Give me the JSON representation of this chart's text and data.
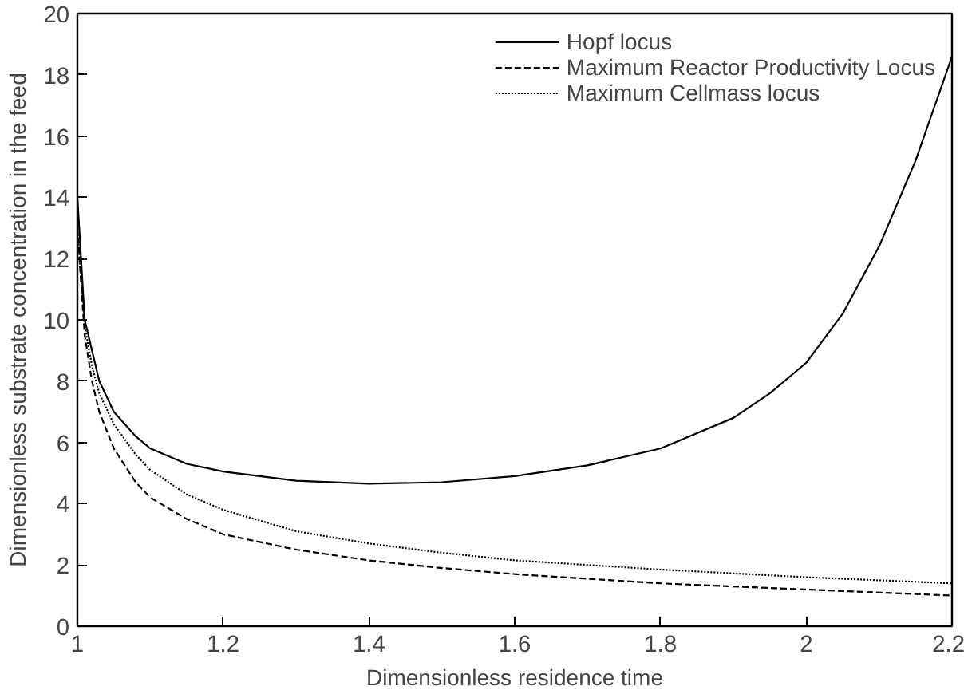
{
  "chart_data": {
    "type": "line",
    "xlabel": "Dimensionless residence time",
    "ylabel": "Dimensionless substrate concentration in the feed",
    "xlim": [
      1,
      2.2
    ],
    "ylim": [
      0,
      20
    ],
    "xticks": [
      1,
      1.2,
      1.4,
      1.6,
      1.8,
      2,
      2.2
    ],
    "yticks": [
      0,
      2,
      4,
      6,
      8,
      10,
      12,
      14,
      16,
      18,
      20
    ],
    "grid": false,
    "legend": "top right",
    "series": [
      {
        "name": "Hopf locus",
        "color": "#000000",
        "line_style": "solid",
        "x": [
          1.0,
          1.01,
          1.03,
          1.05,
          1.08,
          1.1,
          1.15,
          1.2,
          1.3,
          1.4,
          1.5,
          1.6,
          1.7,
          1.8,
          1.9,
          1.95,
          2.0,
          2.05,
          2.1,
          2.15,
          2.2
        ],
        "values": [
          14,
          10,
          8,
          7,
          6.2,
          5.8,
          5.3,
          5.05,
          4.75,
          4.65,
          4.7,
          4.9,
          5.25,
          5.8,
          6.8,
          7.6,
          8.6,
          10.2,
          12.4,
          15.2,
          18.6
        ]
      },
      {
        "name": "Maximum Reactor Productivity Locus",
        "color": "#000000",
        "line_style": "dashed",
        "x": [
          1.0,
          1.01,
          1.02,
          1.03,
          1.05,
          1.08,
          1.1,
          1.15,
          1.2,
          1.3,
          1.4,
          1.5,
          1.6,
          1.8,
          2.0,
          2.2
        ],
        "values": [
          13,
          9.5,
          8,
          7,
          5.8,
          4.7,
          4.2,
          3.5,
          3.0,
          2.5,
          2.15,
          1.9,
          1.7,
          1.4,
          1.2,
          1.0
        ]
      },
      {
        "name": "Maximum Cellmass locus",
        "color": "#000000",
        "line_style": "dotted",
        "x": [
          1.0,
          1.01,
          1.02,
          1.03,
          1.05,
          1.08,
          1.1,
          1.15,
          1.2,
          1.3,
          1.4,
          1.5,
          1.6,
          1.8,
          2.0,
          2.2
        ],
        "values": [
          13,
          9.8,
          8.5,
          7.6,
          6.6,
          5.6,
          5.1,
          4.3,
          3.8,
          3.1,
          2.7,
          2.4,
          2.15,
          1.85,
          1.6,
          1.4
        ]
      }
    ]
  }
}
